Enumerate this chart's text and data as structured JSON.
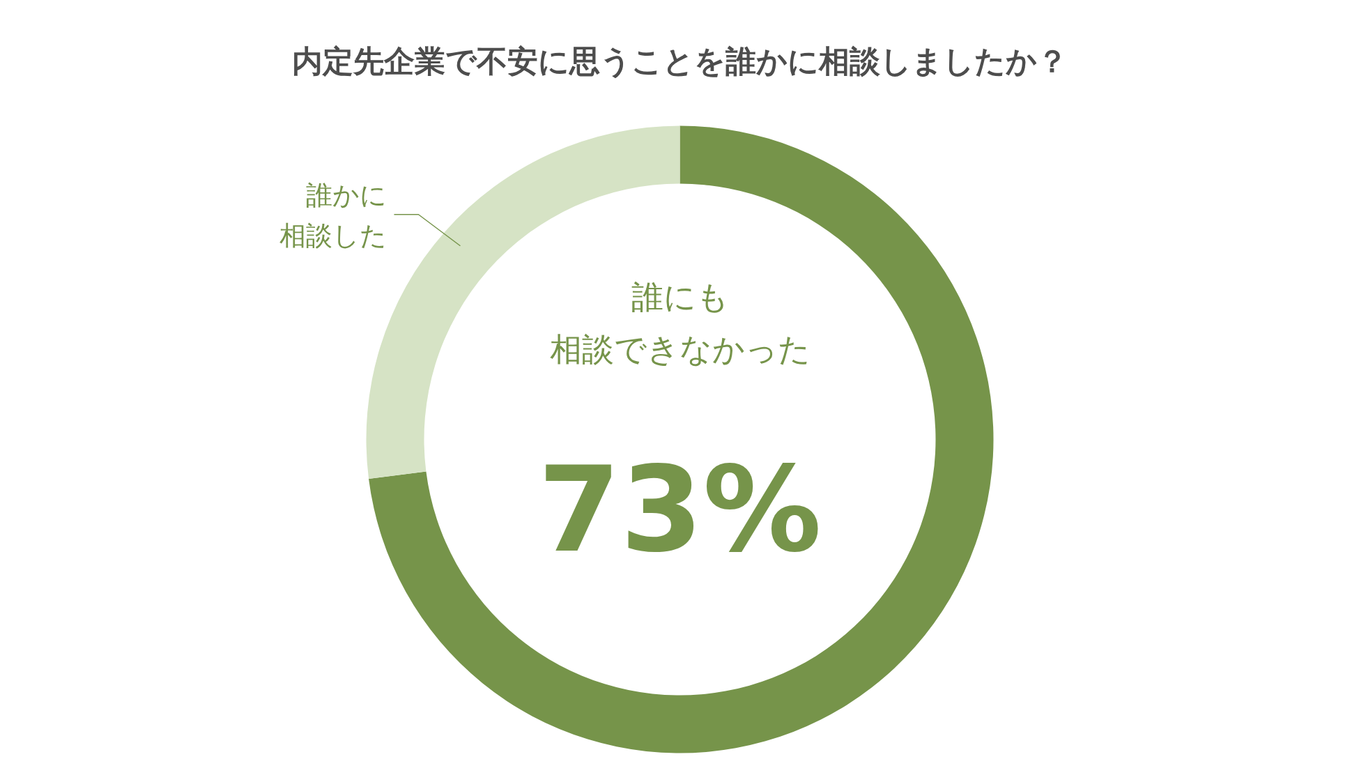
{
  "chart_data": {
    "type": "donut",
    "title": "内定先企業で不安に思うことを誰かに相談しましたか？",
    "categories": [
      "誰にも相談できなかった",
      "誰かに相談した"
    ],
    "values": [
      73,
      27
    ],
    "colors": [
      "#76944a",
      "#d6e3c5"
    ],
    "value_labels": [
      "73%",
      null
    ]
  }
}
